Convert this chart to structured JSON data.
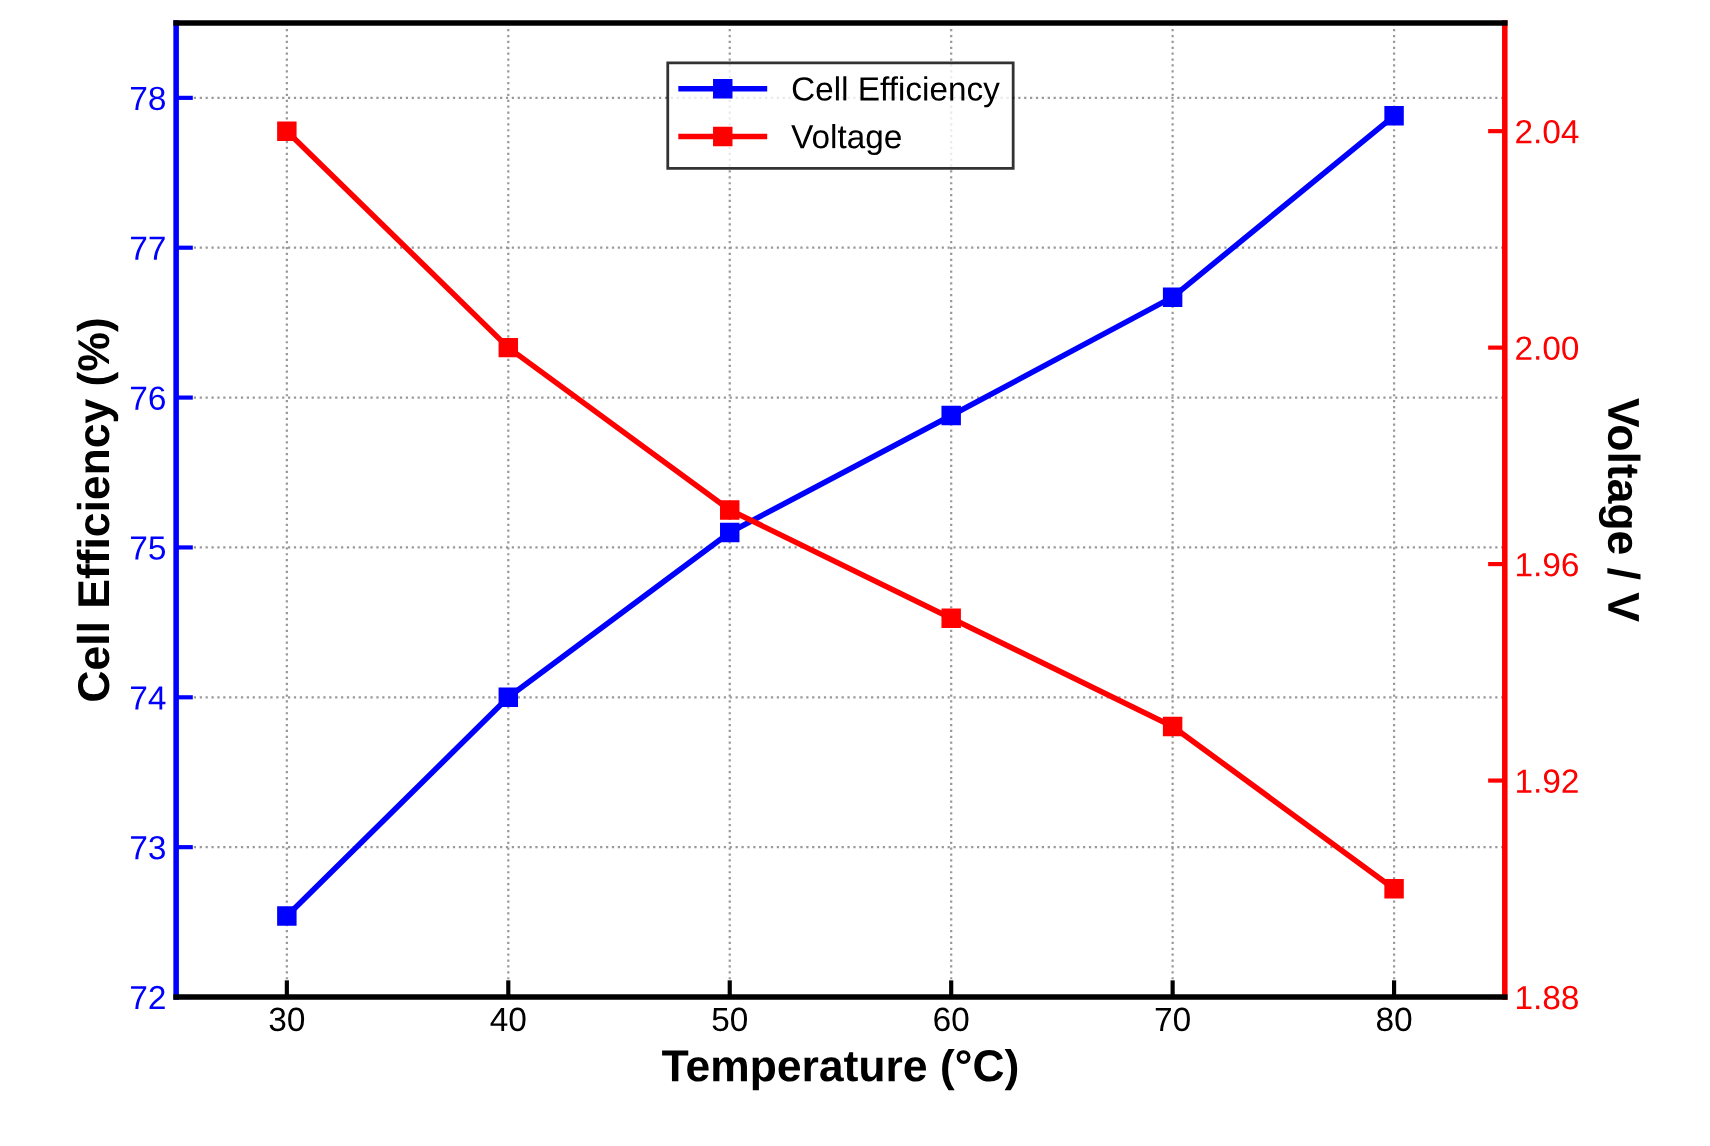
{
  "chart_data": {
    "type": "line",
    "xlabel": "Temperature (°C)",
    "ylabel": "Cell Efficiency (%)",
    "y2label": "Voltage / V",
    "x": [
      30,
      40,
      50,
      60,
      70,
      80
    ],
    "series": [
      {
        "name": "Cell Efficiency",
        "color": "#0000ff",
        "values": [
          72.54,
          74.0,
          75.1,
          75.88,
          76.67,
          77.88
        ]
      },
      {
        "name": "Voltage",
        "color": "#ff0000",
        "axis": "y2",
        "values": [
          2.04,
          2.0,
          1.97,
          1.95,
          1.93,
          1.9
        ]
      }
    ],
    "xlim": [
      25,
      85
    ],
    "xticks": [
      30,
      40,
      50,
      60,
      70,
      80
    ],
    "ylim": [
      72,
      78.5
    ],
    "yticks": [
      72,
      73,
      74,
      75,
      76,
      77,
      78
    ],
    "y2lim": [
      1.88,
      2.06
    ],
    "y2ticks": [
      {
        "value": 1.88,
        "label": "1.88"
      },
      {
        "value": 1.92,
        "label": "1.92"
      },
      {
        "value": 1.96,
        "label": "1.96"
      },
      {
        "value": 2.0,
        "label": "2.00"
      },
      {
        "value": 2.04,
        "label": "2.04"
      }
    ],
    "grid": true,
    "legend": "top",
    "marker": "square",
    "line_style": "solid"
  }
}
